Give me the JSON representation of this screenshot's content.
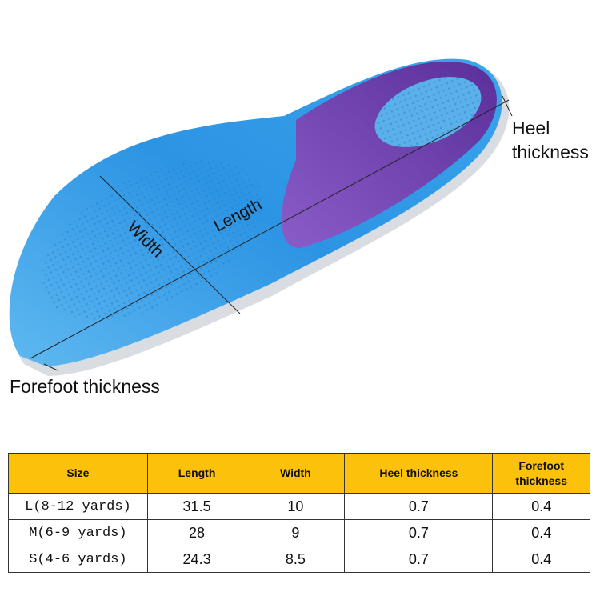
{
  "labels": {
    "length": "Length",
    "width": "Width",
    "heel": "Heel\nthickness",
    "heel_line1": "Heel",
    "heel_line2": "thickness",
    "forefoot": "Forefoot thickness"
  },
  "colors": {
    "insole_blue": "#2f9be8",
    "heel_purple": "#6a3fb0",
    "header_bg": "#fcc10a"
  },
  "table": {
    "headers": [
      "Size",
      "Length",
      "Width",
      "Heel thickness",
      "Forefoot thickness"
    ],
    "rows": [
      {
        "size": "L(8-12 yards)",
        "length": "31.5",
        "width": "10",
        "heel": "0.7",
        "forefoot": "0.4"
      },
      {
        "size": "M(6-9 yards)",
        "length": "28",
        "width": "9",
        "heel": "0.7",
        "forefoot": "0.4"
      },
      {
        "size": "S(4-6 yards)",
        "length": "24.3",
        "width": "8.5",
        "heel": "0.7",
        "forefoot": "0.4"
      }
    ]
  }
}
